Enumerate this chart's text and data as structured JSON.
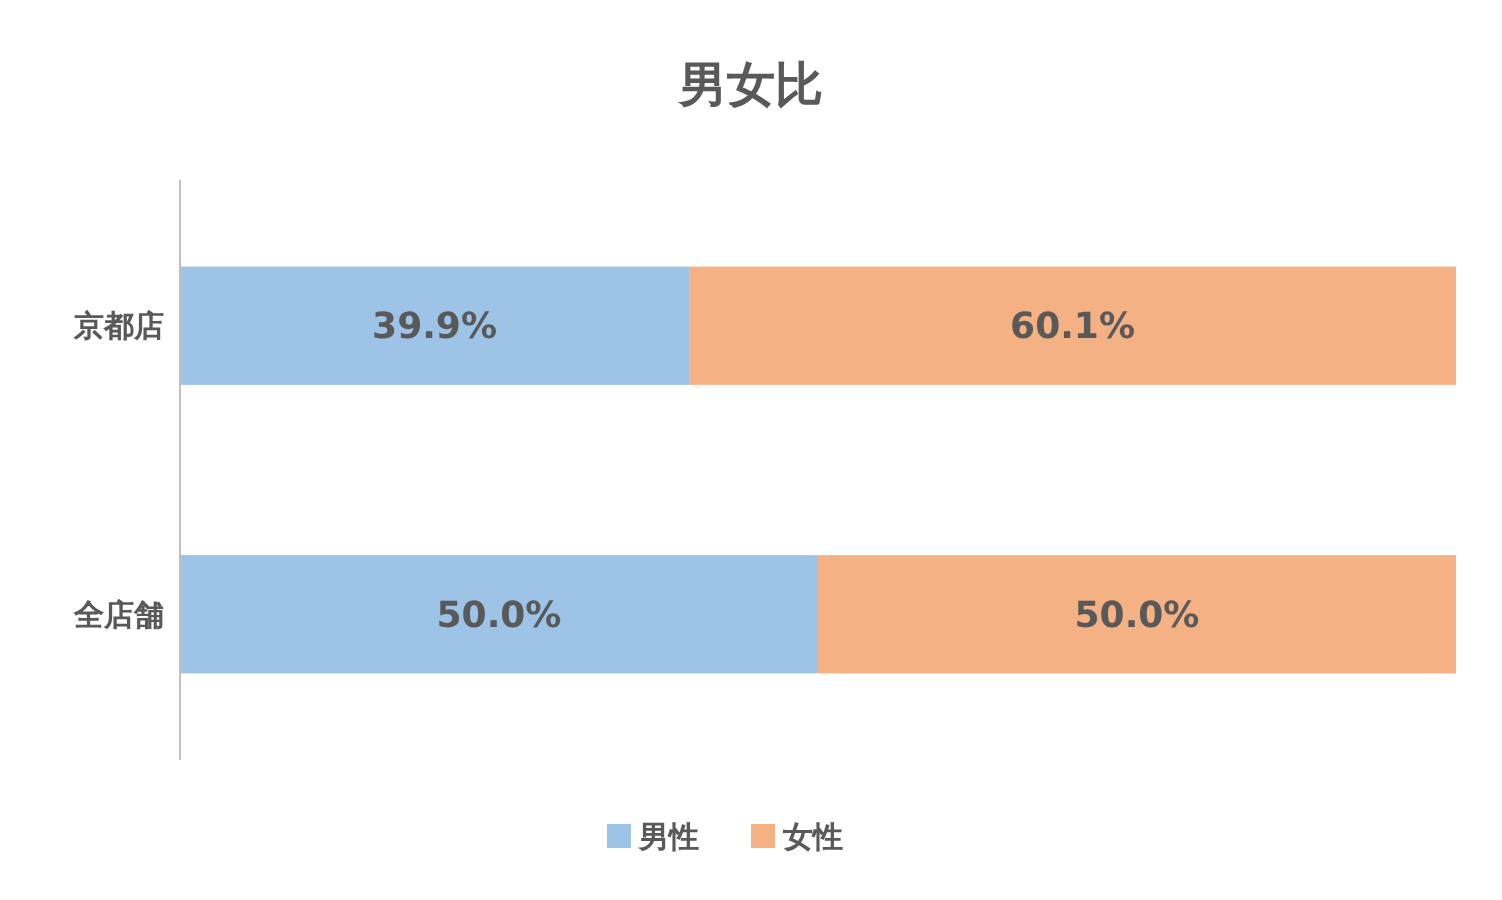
{
  "chart_data": {
    "type": "bar",
    "title": "男女比",
    "orientation": "horizontal",
    "stacked": true,
    "categories": [
      "京都店",
      "全店舗"
    ],
    "series": [
      {
        "name": "男性",
        "color": "#9dc3e6",
        "values": [
          39.9,
          50.0
        ],
        "value_labels": [
          "39.9%",
          "50.0%"
        ]
      },
      {
        "name": "女性",
        "color": "#f4b183",
        "values": [
          60.1,
          50.0
        ],
        "value_labels": [
          "60.1%",
          "50.0%"
        ]
      }
    ],
    "xlim": [
      0,
      100
    ],
    "tick_labels": "y",
    "grid": false,
    "legend": "bottom"
  }
}
